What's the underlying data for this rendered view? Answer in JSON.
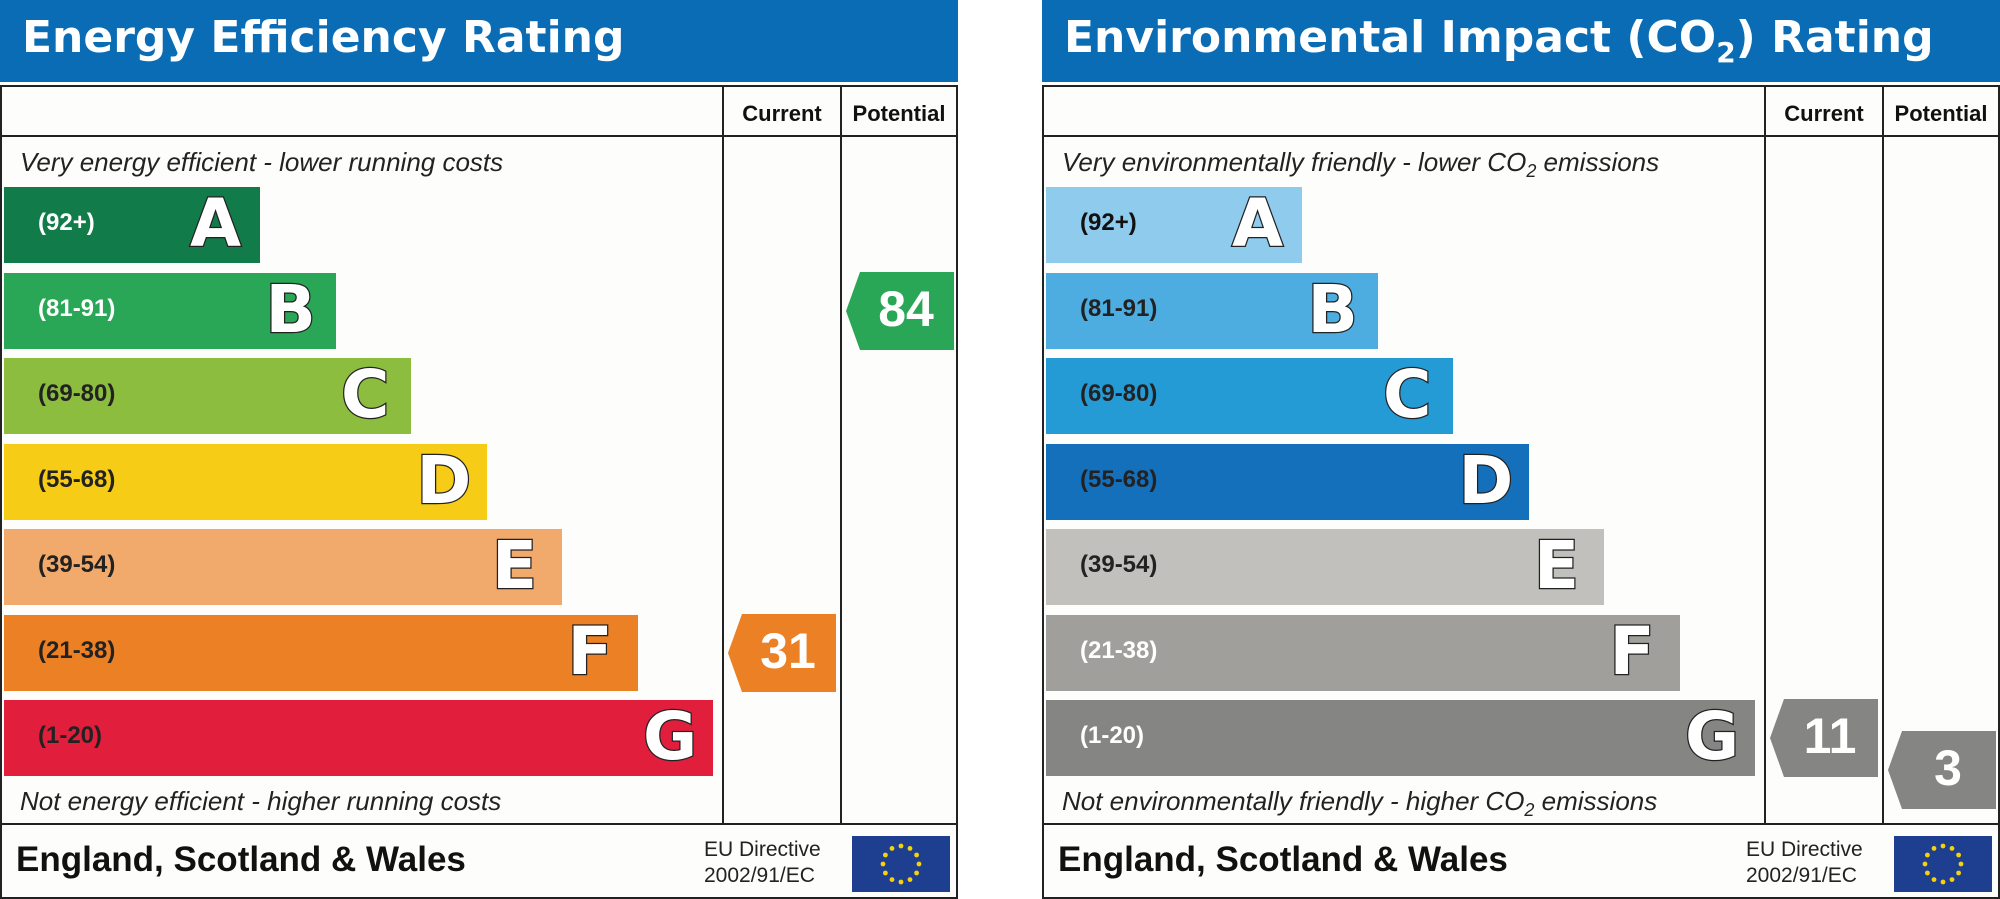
{
  "chart_data": [
    {
      "type": "bar",
      "title": "Energy Efficiency Rating",
      "columns": [
        "Current",
        "Potential"
      ],
      "top_caption": "Very energy efficient - lower running costs",
      "bottom_caption": "Not energy efficient - higher running costs",
      "bands": [
        {
          "letter": "A",
          "range": "(92+)",
          "color": "#127b4a",
          "text_color": "#ffffff"
        },
        {
          "letter": "B",
          "range": "(81-91)",
          "color": "#2aa756",
          "text_color": "#ffffff"
        },
        {
          "letter": "C",
          "range": "(69-80)",
          "color": "#8cbd3f",
          "text_color": "#222222"
        },
        {
          "letter": "D",
          "range": "(55-68)",
          "color": "#f6cc17",
          "text_color": "#222222"
        },
        {
          "letter": "E",
          "range": "(39-54)",
          "color": "#f1aa6c",
          "text_color": "#222222"
        },
        {
          "letter": "F",
          "range": "(21-38)",
          "color": "#ec8025",
          "text_color": "#222222"
        },
        {
          "letter": "G",
          "range": "(1-20)",
          "color": "#e11f3c",
          "text_color": "#222222"
        }
      ],
      "current": {
        "value": "31",
        "band": "F",
        "color": "#ec8025"
      },
      "potential": {
        "value": "84",
        "band": "B",
        "color": "#2aa756"
      },
      "footer": {
        "country": "England, Scotland & Wales",
        "directive_line1": "EU Directive",
        "directive_line2": "2002/91/EC"
      }
    },
    {
      "type": "bar",
      "title": "Environmental Impact (CO",
      "title_sub": "2",
      "title_end": ") Rating",
      "columns": [
        "Current",
        "Potential"
      ],
      "top_caption": "Very environmentally friendly - lower CO",
      "top_caption_sub": "2",
      "top_caption_end": " emissions",
      "bottom_caption": "Not environmentally friendly - higher CO",
      "bottom_caption_sub": "2",
      "bottom_caption_end": " emissions",
      "bands": [
        {
          "letter": "A",
          "range": "(92+)",
          "color": "#8fcbec",
          "text_color": "#111111"
        },
        {
          "letter": "B",
          "range": "(81-91)",
          "color": "#4eade0",
          "text_color": "#222222"
        },
        {
          "letter": "C",
          "range": "(69-80)",
          "color": "#259bd6",
          "text_color": "#222222"
        },
        {
          "letter": "D",
          "range": "(55-68)",
          "color": "#1570bc",
          "text_color": "#222222"
        },
        {
          "letter": "E",
          "range": "(39-54)",
          "color": "#c1c0bc",
          "text_color": "#222222"
        },
        {
          "letter": "F",
          "range": "(21-38)",
          "color": "#a09f9b",
          "text_color": "#ffffff"
        },
        {
          "letter": "G",
          "range": "(1-20)",
          "color": "#858583",
          "text_color": "#ffffff"
        }
      ],
      "current": {
        "value": "11",
        "band": "G",
        "color": "#858583"
      },
      "potential": {
        "value": "3",
        "band": "G",
        "color": "#858583"
      },
      "footer": {
        "country": "England, Scotland & Wales",
        "directive_line1": "EU Directive",
        "directive_line2": "2002/91/EC"
      }
    }
  ]
}
